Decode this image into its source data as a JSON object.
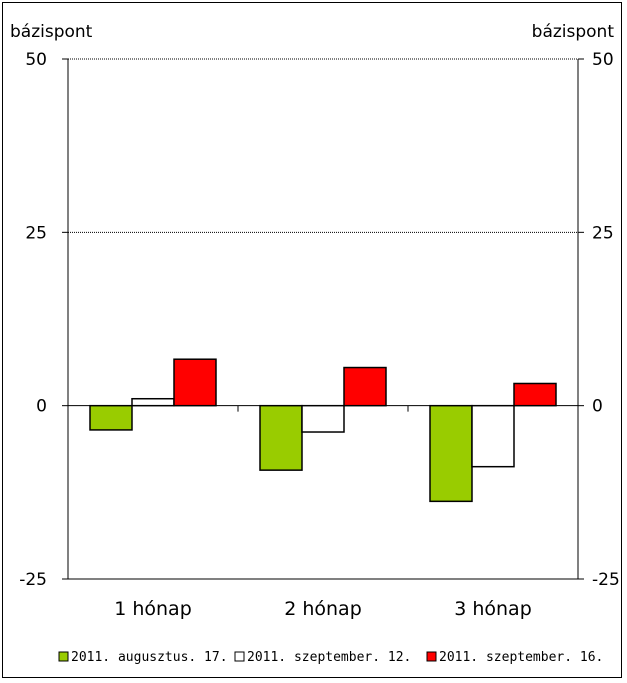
{
  "chart_data": {
    "type": "bar",
    "y_unit_left": "bázispont",
    "y_unit_right": "bázispont",
    "categories": [
      "1 hónap",
      "2 hónap",
      "3 hónap"
    ],
    "series": [
      {
        "name": "2011. augusztus. 17.",
        "color": "#99cc00",
        "values": [
          -3.5,
          -9.3,
          -13.8
        ]
      },
      {
        "name": "2011. szeptember. 12.",
        "color": "#ffffff",
        "values": [
          1.0,
          -3.8,
          -8.8
        ]
      },
      {
        "name": "2011. szeptember. 16.",
        "color": "#ff0000",
        "values": [
          6.7,
          5.5,
          3.2
        ]
      }
    ],
    "ylim": [
      -25,
      50
    ],
    "yticks": [
      -25,
      0,
      25,
      50
    ],
    "ytick_labels": [
      "-25",
      "0",
      "25",
      "50"
    ],
    "gridlines": [
      25,
      50
    ],
    "legend_position": "bottom"
  }
}
